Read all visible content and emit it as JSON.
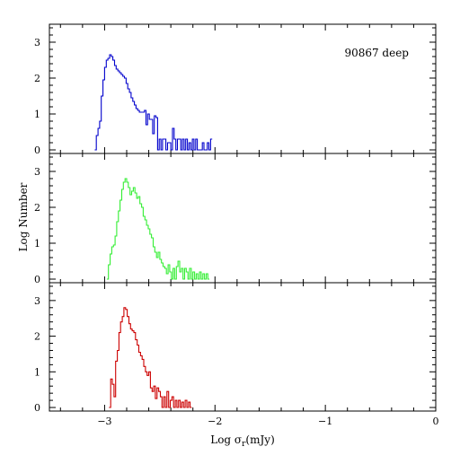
{
  "chart_data": [
    {
      "type": "histogram",
      "panel": "top",
      "annotation": "90867 deep",
      "color": "#0000cc",
      "xlim": [
        -3.5,
        0
      ],
      "ylim": [
        -0.1,
        3.5
      ],
      "yticks": [
        0,
        1,
        2,
        3
      ],
      "points": [
        [
          -3.09,
          0
        ],
        [
          -3.075,
          0.4
        ],
        [
          -3.06,
          0.6
        ],
        [
          -3.045,
          0.8
        ],
        [
          -3.03,
          1.5
        ],
        [
          -3.015,
          1.95
        ],
        [
          -3.0,
          2.3
        ],
        [
          -2.985,
          2.5
        ],
        [
          -2.97,
          2.55
        ],
        [
          -2.955,
          2.65
        ],
        [
          -2.94,
          2.6
        ],
        [
          -2.925,
          2.5
        ],
        [
          -2.91,
          2.35
        ],
        [
          -2.895,
          2.25
        ],
        [
          -2.88,
          2.2
        ],
        [
          -2.865,
          2.15
        ],
        [
          -2.85,
          2.1
        ],
        [
          -2.835,
          2.05
        ],
        [
          -2.82,
          2.0
        ],
        [
          -2.805,
          1.85
        ],
        [
          -2.79,
          1.7
        ],
        [
          -2.775,
          1.6
        ],
        [
          -2.76,
          1.45
        ],
        [
          -2.745,
          1.35
        ],
        [
          -2.73,
          1.25
        ],
        [
          -2.715,
          1.15
        ],
        [
          -2.7,
          1.1
        ],
        [
          -2.685,
          1.05
        ],
        [
          -2.67,
          1.05
        ],
        [
          -2.655,
          1.05
        ],
        [
          -2.64,
          1.1
        ],
        [
          -2.625,
          0.7
        ],
        [
          -2.61,
          1.0
        ],
        [
          -2.595,
          0.85
        ],
        [
          -2.58,
          0.85
        ],
        [
          -2.565,
          0.45
        ],
        [
          -2.55,
          0.95
        ],
        [
          -2.535,
          0.9
        ],
        [
          -2.52,
          0
        ],
        [
          -2.505,
          0.3
        ],
        [
          -2.49,
          0
        ],
        [
          -2.475,
          0.3
        ],
        [
          -2.46,
          0.3
        ],
        [
          -2.445,
          0
        ],
        [
          -2.43,
          0.2
        ],
        [
          -2.415,
          0.2
        ],
        [
          -2.4,
          0
        ],
        [
          -2.385,
          0.6
        ],
        [
          -2.37,
          0.3
        ],
        [
          -2.355,
          0
        ],
        [
          -2.34,
          0.3
        ],
        [
          -2.325,
          0.3
        ],
        [
          -2.31,
          0
        ],
        [
          -2.295,
          0.3
        ],
        [
          -2.28,
          0
        ],
        [
          -2.265,
          0.3
        ],
        [
          -2.25,
          0
        ],
        [
          -2.235,
          0.2
        ],
        [
          -2.22,
          0
        ],
        [
          -2.205,
          0.3
        ],
        [
          -2.19,
          0
        ],
        [
          -2.175,
          0.3
        ],
        [
          -2.16,
          0
        ],
        [
          -2.145,
          0
        ],
        [
          -2.13,
          0
        ],
        [
          -2.115,
          0.2
        ],
        [
          -2.1,
          0
        ],
        [
          -2.085,
          0
        ],
        [
          -2.07,
          0.2
        ],
        [
          -2.055,
          0
        ],
        [
          -2.04,
          0.3
        ]
      ]
    },
    {
      "type": "histogram",
      "panel": "middle",
      "annotation": "",
      "color": "#33ee33",
      "xlim": [
        -3.5,
        0
      ],
      "ylim": [
        -0.1,
        3.5
      ],
      "yticks": [
        0,
        1,
        2,
        3
      ],
      "points": [
        [
          -2.98,
          0
        ],
        [
          -2.965,
          0.4
        ],
        [
          -2.95,
          0.7
        ],
        [
          -2.935,
          0.9
        ],
        [
          -2.92,
          0.95
        ],
        [
          -2.905,
          1.2
        ],
        [
          -2.89,
          1.6
        ],
        [
          -2.875,
          1.9
        ],
        [
          -2.86,
          2.2
        ],
        [
          -2.845,
          2.5
        ],
        [
          -2.83,
          2.7
        ],
        [
          -2.815,
          2.8
        ],
        [
          -2.8,
          2.7
        ],
        [
          -2.785,
          2.55
        ],
        [
          -2.77,
          2.35
        ],
        [
          -2.755,
          2.45
        ],
        [
          -2.74,
          2.55
        ],
        [
          -2.725,
          2.4
        ],
        [
          -2.71,
          2.25
        ],
        [
          -2.695,
          2.3
        ],
        [
          -2.68,
          2.1
        ],
        [
          -2.665,
          2.0
        ],
        [
          -2.65,
          1.75
        ],
        [
          -2.635,
          1.65
        ],
        [
          -2.62,
          1.5
        ],
        [
          -2.605,
          1.4
        ],
        [
          -2.59,
          1.25
        ],
        [
          -2.575,
          1.15
        ],
        [
          -2.56,
          0.9
        ],
        [
          -2.545,
          0.75
        ],
        [
          -2.53,
          0.6
        ],
        [
          -2.515,
          0.75
        ],
        [
          -2.5,
          0.55
        ],
        [
          -2.485,
          0.45
        ],
        [
          -2.47,
          0.35
        ],
        [
          -2.455,
          0.3
        ],
        [
          -2.44,
          0.15
        ],
        [
          -2.425,
          0.4
        ],
        [
          -2.41,
          0.2
        ],
        [
          -2.395,
          0
        ],
        [
          -2.38,
          0.3
        ],
        [
          -2.365,
          0
        ],
        [
          -2.35,
          0.35
        ],
        [
          -2.335,
          0.5
        ],
        [
          -2.32,
          0.2
        ],
        [
          -2.305,
          0.3
        ],
        [
          -2.29,
          0
        ],
        [
          -2.275,
          0.3
        ],
        [
          -2.26,
          0.2
        ],
        [
          -2.245,
          0
        ],
        [
          -2.23,
          0.3
        ],
        [
          -2.215,
          0
        ],
        [
          -2.2,
          0.2
        ],
        [
          -2.185,
          0
        ],
        [
          -2.17,
          0.15
        ],
        [
          -2.155,
          0
        ],
        [
          -2.14,
          0.2
        ],
        [
          -2.125,
          0
        ],
        [
          -2.11,
          0.15
        ],
        [
          -2.095,
          0
        ],
        [
          -2.08,
          0.15
        ],
        [
          -2.065,
          0
        ]
      ]
    },
    {
      "type": "histogram",
      "panel": "bottom",
      "annotation": "",
      "color": "#cc0000",
      "xlim": [
        -3.5,
        0
      ],
      "ylim": [
        -0.1,
        3.5
      ],
      "yticks": [
        0,
        1,
        2,
        3
      ],
      "points": [
        [
          -2.96,
          0
        ],
        [
          -2.945,
          0.8
        ],
        [
          -2.93,
          0.65
        ],
        [
          -2.915,
          0.3
        ],
        [
          -2.9,
          1.3
        ],
        [
          -2.885,
          1.6
        ],
        [
          -2.87,
          2.1
        ],
        [
          -2.855,
          2.4
        ],
        [
          -2.84,
          2.55
        ],
        [
          -2.825,
          2.8
        ],
        [
          -2.81,
          2.75
        ],
        [
          -2.795,
          2.55
        ],
        [
          -2.78,
          2.35
        ],
        [
          -2.765,
          2.2
        ],
        [
          -2.75,
          2.15
        ],
        [
          -2.735,
          2.1
        ],
        [
          -2.72,
          1.9
        ],
        [
          -2.705,
          1.75
        ],
        [
          -2.69,
          1.55
        ],
        [
          -2.675,
          1.45
        ],
        [
          -2.66,
          1.35
        ],
        [
          -2.645,
          1.15
        ],
        [
          -2.63,
          1.0
        ],
        [
          -2.615,
          0.9
        ],
        [
          -2.6,
          1.0
        ],
        [
          -2.585,
          0.55
        ],
        [
          -2.57,
          0.45
        ],
        [
          -2.555,
          0.6
        ],
        [
          -2.54,
          0.25
        ],
        [
          -2.525,
          0.55
        ],
        [
          -2.51,
          0.45
        ],
        [
          -2.495,
          0.3
        ],
        [
          -2.48,
          0
        ],
        [
          -2.465,
          0.3
        ],
        [
          -2.45,
          0
        ],
        [
          -2.435,
          0.45
        ],
        [
          -2.42,
          0
        ],
        [
          -2.405,
          0.2
        ],
        [
          -2.39,
          0.3
        ],
        [
          -2.375,
          0
        ],
        [
          -2.36,
          0.2
        ],
        [
          -2.345,
          0
        ],
        [
          -2.33,
          0.2
        ],
        [
          -2.315,
          0
        ],
        [
          -2.3,
          0.15
        ],
        [
          -2.285,
          0
        ],
        [
          -2.27,
          0.2
        ],
        [
          -2.255,
          0
        ],
        [
          -2.24,
          0.15
        ],
        [
          -2.225,
          0
        ]
      ]
    }
  ],
  "axes": {
    "xlabel_prefix": "Log σ",
    "xlabel_sub": "r",
    "xlabel_suffix": "(mJy)",
    "ylabel": "Log Number",
    "xticks": [
      {
        "value": -3,
        "label": "−3"
      },
      {
        "value": -2,
        "label": "−2"
      },
      {
        "value": -1,
        "label": "−1"
      },
      {
        "value": 0,
        "label": "0"
      }
    ],
    "yticks": [
      "0",
      "1",
      "2",
      "3"
    ]
  }
}
